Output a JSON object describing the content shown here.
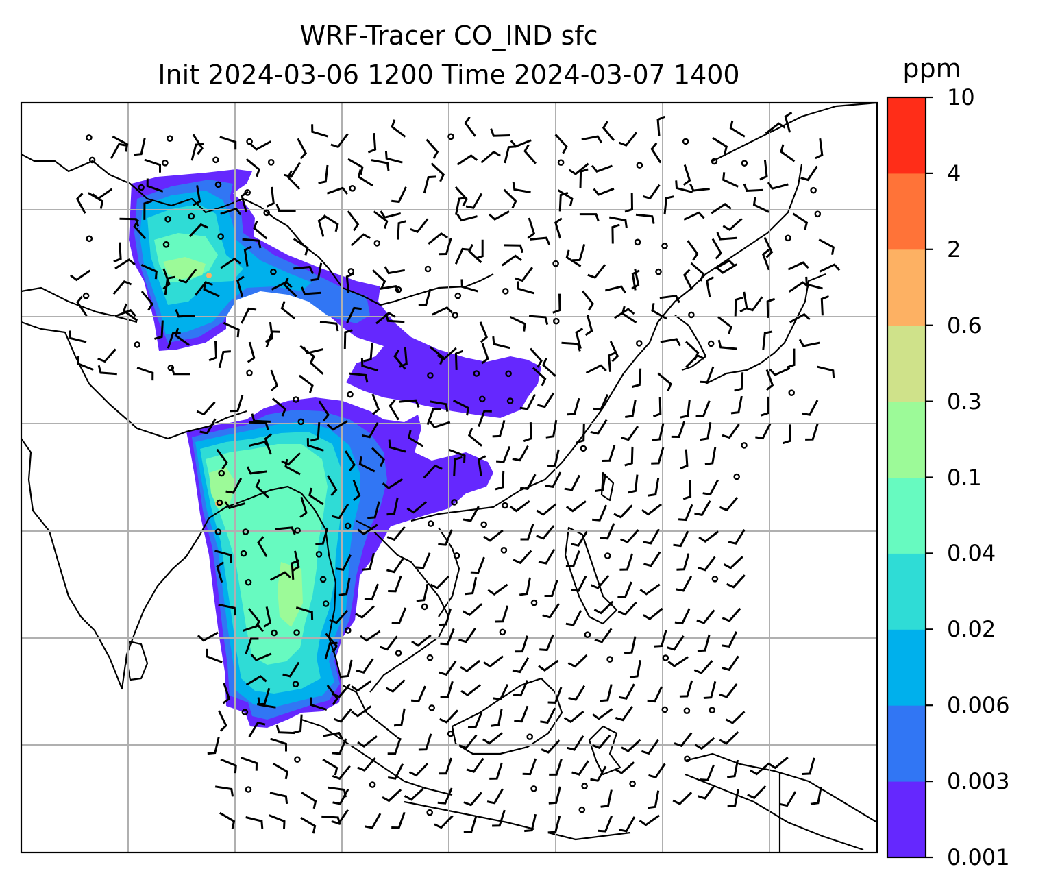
{
  "title": {
    "line1": "WRF-Tracer CO_IND sfc",
    "line2": "Init 2024-03-06 1200 Time 2024-03-07 1400"
  },
  "colorbar": {
    "unit": "ppm",
    "levels": [
      "0.001",
      "0.003",
      "0.006",
      "0.02",
      "0.04",
      "0.1",
      "0.3",
      "0.6",
      "2",
      "4",
      "10"
    ],
    "colors": [
      "#6528fe",
      "#3176f4",
      "#00b0ec",
      "#2fdcd6",
      "#67fac0",
      "#9cfa98",
      "#cfe28a",
      "#fdb163",
      "#ff7338",
      "#ff2d18"
    ]
  },
  "map": {
    "grid": "on",
    "coastline_color": "#000000",
    "grid_color": "#b0b0b0"
  }
}
